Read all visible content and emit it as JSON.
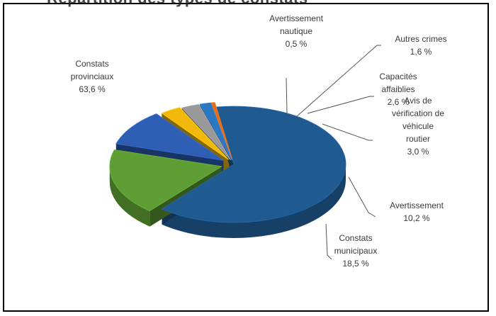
{
  "header": {
    "cutoff_title": "Répartition des types de constats"
  },
  "chart_data": {
    "type": "pie",
    "style": "3d-exploded",
    "slices": [
      {
        "lines": [
          "Constats",
          "provinciaux"
        ],
        "value_label": "63,6 %",
        "value": 63.6,
        "color": "#1f5b91"
      },
      {
        "lines": [
          "Constats",
          "municipaux"
        ],
        "value_label": "18,5 %",
        "value": 18.5,
        "color": "#5f9e34"
      },
      {
        "lines": [
          "Avertissement"
        ],
        "value_label": "10,2 %",
        "value": 10.2,
        "color": "#2e5fb5"
      },
      {
        "lines": [
          "Avis de",
          "vérification de",
          "véhicule",
          "routier"
        ],
        "value_label": "3,0 %",
        "value": 3.0,
        "color": "#f2b90c"
      },
      {
        "lines": [
          "Capacités",
          "affaiblies"
        ],
        "value_label": "2,6 %",
        "value": 2.6,
        "color": "#999999"
      },
      {
        "lines": [
          "Autres crimes"
        ],
        "value_label": "1,6 %",
        "value": 1.6,
        "color": "#2b77c2"
      },
      {
        "lines": [
          "Avertissement",
          "nautique"
        ],
        "value_label": "0,5 %",
        "value": 0.5,
        "color": "#e36c1a"
      }
    ]
  }
}
